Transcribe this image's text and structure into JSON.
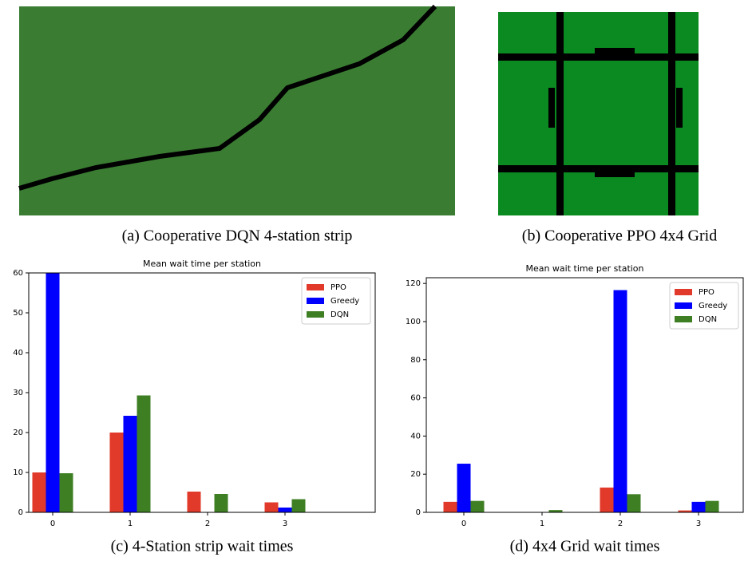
{
  "panels": [
    {
      "caption": "(a) Cooperative DQN 4-station strip"
    },
    {
      "caption": "(b) Cooperative PPO 4x4 Grid"
    }
  ],
  "chart_data": [
    {
      "type": "bar",
      "title": "Mean wait time per station",
      "caption": "(c) 4-Station strip wait times",
      "categories": [
        "0",
        "1",
        "2",
        "3"
      ],
      "series": [
        {
          "name": "PPO",
          "color": "#e23a2a",
          "values": [
            10,
            20,
            5.2,
            2.5
          ]
        },
        {
          "name": "Greedy",
          "color": "#0000ff",
          "values": [
            60,
            24.2,
            0,
            1.2
          ]
        },
        {
          "name": "DQN",
          "color": "#3f7f24",
          "values": [
            9.8,
            29.3,
            4.6,
            3.3
          ]
        }
      ],
      "ylim": [
        0,
        60
      ],
      "yticks": [
        0,
        10,
        20,
        30,
        40,
        50,
        60
      ],
      "legend": "upper right"
    },
    {
      "type": "bar",
      "title": "Mean wait time per station",
      "caption": "(d) 4x4 Grid wait times",
      "categories": [
        "0",
        "1",
        "2",
        "3"
      ],
      "series": [
        {
          "name": "PPO",
          "color": "#e23a2a",
          "values": [
            5.5,
            0,
            13,
            1
          ]
        },
        {
          "name": "Greedy",
          "color": "#0000ff",
          "values": [
            25.5,
            0,
            116.5,
            5.5
          ]
        },
        {
          "name": "DQN",
          "color": "#3f7f24",
          "values": [
            6,
            1.2,
            9.5,
            6
          ]
        }
      ],
      "ylim": [
        0,
        123
      ],
      "yticks": [
        0,
        20,
        40,
        60,
        80,
        100,
        120
      ],
      "legend": "upper right"
    }
  ]
}
